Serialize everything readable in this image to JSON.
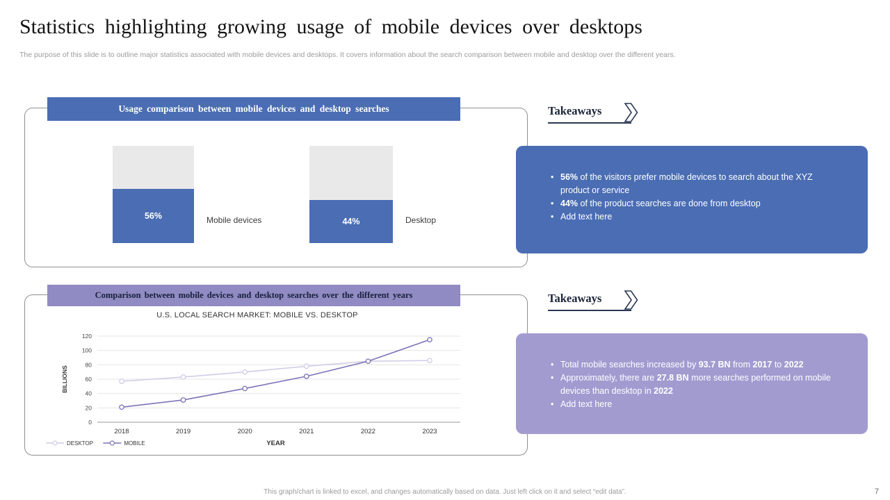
{
  "slide": {
    "title": "Statistics highlighting growing usage of mobile devices over desktops",
    "subtitle": "The purpose of this slide is to outline major statistics associated with mobile devices and desktops. It covers information about the search comparison between mobile and desktop over the different years.",
    "footer_note": "This graph/chart is linked to excel, and changes automatically based on data. Just left click on it and select “edit data”.",
    "page_number": "7"
  },
  "colors": {
    "accent_blue": "#4a6db3",
    "accent_purple": "#918bc3",
    "takeaway_purple": "#a29bd0",
    "bar_track_gray": "#e9e9e9",
    "desktop_line": "#d2cce6",
    "mobile_line": "#7a73b8"
  },
  "usage_section": {
    "header": "Usage comparison between mobile devices and desktop searches",
    "takeaways_title": "Takeaways",
    "takeaways": [
      [
        {
          "text": "56%",
          "bold": true
        },
        {
          "text": " of the visitors prefer mobile devices to search about the XYZ product or service",
          "bold": false
        }
      ],
      [
        {
          "text": "44%",
          "bold": true
        },
        {
          "text": " of the product searches are done from desktop",
          "bold": false
        }
      ],
      [
        {
          "text": "Add text here",
          "bold": false
        }
      ]
    ]
  },
  "trend_section": {
    "header": "Comparison between mobile devices and desktop searches over the different years",
    "takeaways_title": "Takeaways",
    "takeaways": [
      [
        {
          "text": "Total mobile searches increased by ",
          "bold": false
        },
        {
          "text": "93.7 BN",
          "bold": true
        },
        {
          "text": " from ",
          "bold": false
        },
        {
          "text": "2017",
          "bold": true
        },
        {
          "text": " to ",
          "bold": false
        },
        {
          "text": "2022",
          "bold": true
        }
      ],
      [
        {
          "text": "Approximately, there are ",
          "bold": false
        },
        {
          "text": "27.8 BN",
          "bold": true
        },
        {
          "text": " more searches performed on mobile devices than desktop in ",
          "bold": false
        },
        {
          "text": "2022",
          "bold": true
        }
      ],
      [
        {
          "text": "Add text here",
          "bold": false
        }
      ]
    ]
  },
  "chart_data": [
    {
      "type": "bar",
      "title": "Usage comparison between mobile devices and desktop searches",
      "categories": [
        "Mobile devices",
        "Desktop"
      ],
      "values": [
        56,
        44
      ],
      "unit": "%",
      "ylim": [
        0,
        100
      ]
    },
    {
      "type": "line",
      "title": "U.S. LOCAL SEARCH MARKET: MOBILE VS. DESKTOP",
      "x": [
        "2018",
        "2019",
        "2020",
        "2021",
        "2022",
        "2023"
      ],
      "series": [
        {
          "name": "DESKTOP",
          "values": [
            57,
            63,
            70,
            78,
            85,
            86
          ],
          "color": "#d2cce6"
        },
        {
          "name": "MOBILE",
          "values": [
            21,
            31,
            47,
            64,
            85,
            115
          ],
          "color": "#7a73b8"
        }
      ],
      "xlabel": "YEAR",
      "ylabel": "BILLIONS",
      "ylim": [
        0,
        120
      ],
      "yticks": [
        0,
        20,
        40,
        60,
        80,
        100,
        120
      ],
      "grid": true,
      "legend_position": "bottom-left"
    }
  ]
}
